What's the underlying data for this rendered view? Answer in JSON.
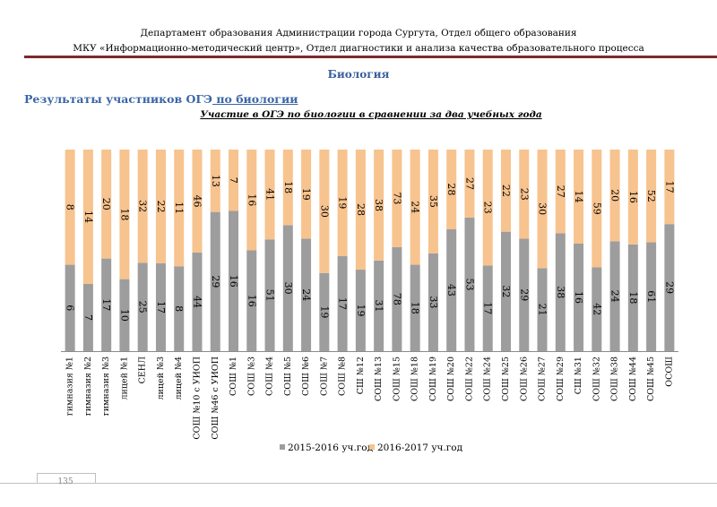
{
  "header": {
    "line1": "Департамент образования Администрации города Сургута, Отдел общего образования",
    "line2": "МКУ «Информационно-методический центр», Отдел диагностики и анализа качества образовательного процесса"
  },
  "subject": "Биология",
  "section": {
    "prefix": "Результаты участников ОГЭ",
    "link": " по биологии"
  },
  "colors": {
    "series1": "#9d9d9d",
    "series2": "#f7c38e",
    "rule": "#7b2a2a",
    "accent": "#3a66a7"
  },
  "chart_data": {
    "type": "bar",
    "stacked": "percent",
    "title": "Участие в ОГЭ по биологии в сравнении за два учебных года",
    "categories": [
      "гимназия №1",
      "гимназия №2",
      "гимназия №3",
      "лицей №1",
      "СЕНЛ",
      "лицей №3",
      "лицей №4",
      "СОШ №10 с УИОП",
      "СОШ №46 с УИОП",
      "СОШ №1",
      "СОШ №3",
      "СОШ №4",
      "СОШ №5",
      "СОШ №6",
      "СОШ №7",
      "СОШ №8",
      "СШ №12",
      "СОШ №13",
      "СОШ №15",
      "СОШ №18",
      "СОШ №19",
      "СОШ №20",
      "СОШ №22",
      "СОШ №24",
      "СОШ №25",
      "СОШ №26",
      "СОШ №27",
      "СОШ №29",
      "СШ №31",
      "СОШ №32",
      "СОШ №38",
      "СОШ №44",
      "СОШ №45",
      "ОСОШ"
    ],
    "series": [
      {
        "name": "2015-2016 уч.год",
        "values": [
          6,
          7,
          17,
          10,
          25,
          17,
          8,
          44,
          29,
          16,
          16,
          51,
          30,
          24,
          19,
          17,
          19,
          31,
          78,
          18,
          33,
          43,
          53,
          17,
          32,
          29,
          21,
          38,
          16,
          42,
          24,
          18,
          61,
          29
        ]
      },
      {
        "name": "2016-2017 уч.год",
        "values": [
          8,
          14,
          20,
          18,
          32,
          22,
          11,
          46,
          13,
          7,
          16,
          41,
          18,
          19,
          30,
          19,
          28,
          38,
          73,
          24,
          35,
          28,
          27,
          23,
          22,
          23,
          30,
          27,
          14,
          59,
          20,
          16,
          52,
          17
        ]
      }
    ],
    "legend": "bottom",
    "grid": false
  },
  "footer": {
    "page": "135"
  }
}
